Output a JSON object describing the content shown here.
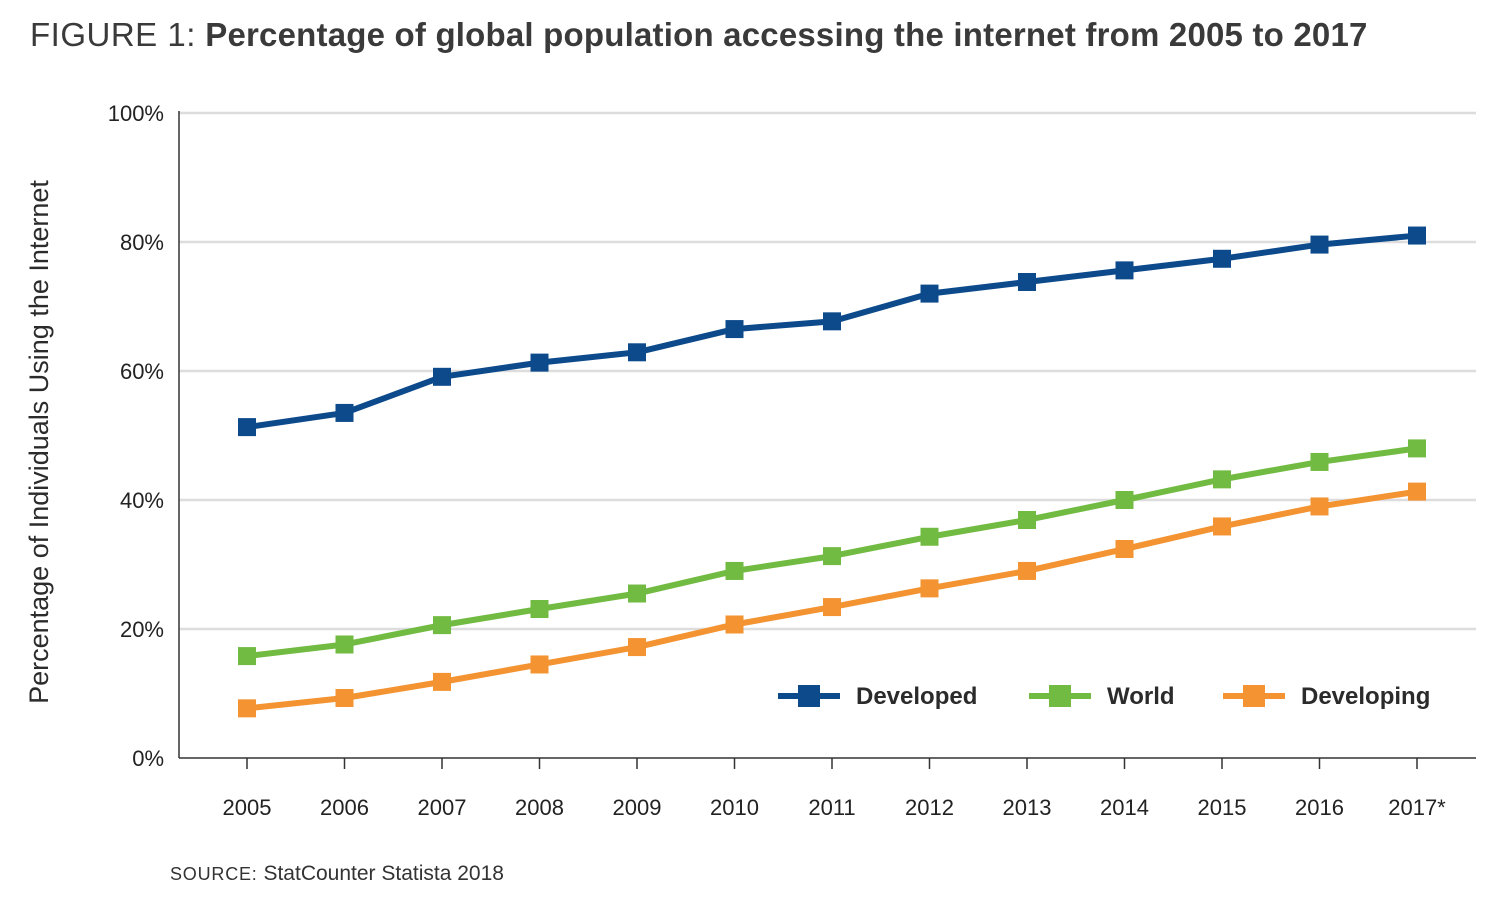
{
  "figure": {
    "title_prefix": "FIGURE 1:",
    "title_text": "Percentage of global population accessing the internet from 2005 to 2017",
    "source_label": "SOURCE:",
    "source_text": "StatCounter Statista 2018"
  },
  "chart_data": {
    "type": "line",
    "title": "FIGURE 1: Percentage of global population accessing the internet from 2005 to 2017",
    "xlabel": "",
    "ylabel": "Percentage of Individuals Using the Internet",
    "categories": [
      "2005",
      "2006",
      "2007",
      "2008",
      "2009",
      "2010",
      "2011",
      "2012",
      "2013",
      "2014",
      "2015",
      "2016",
      "2017*"
    ],
    "y_ticks": [
      "0%",
      "20%",
      "40%",
      "60%",
      "80%",
      "100%"
    ],
    "ylim": [
      0,
      100
    ],
    "grid": true,
    "legend_position": "bottom-right",
    "series": [
      {
        "name": "Developed",
        "color": "#0d4a8b",
        "values": [
          51.3,
          53.5,
          59.1,
          61.3,
          62.9,
          66.5,
          67.7,
          72.0,
          73.8,
          75.6,
          77.4,
          79.6,
          81.0
        ]
      },
      {
        "name": "World",
        "color": "#72bb42",
        "values": [
          15.8,
          17.6,
          20.6,
          23.1,
          25.5,
          29.0,
          31.3,
          34.3,
          36.9,
          40.0,
          43.2,
          45.9,
          48.0
        ]
      },
      {
        "name": "Developing",
        "color": "#f39331",
        "values": [
          7.7,
          9.3,
          11.8,
          14.5,
          17.2,
          20.7,
          23.4,
          26.3,
          29.0,
          32.4,
          35.9,
          39.0,
          41.3
        ]
      }
    ]
  }
}
